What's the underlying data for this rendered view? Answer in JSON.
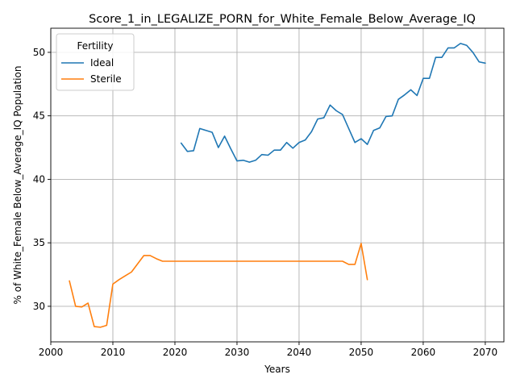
{
  "chart_data": {
    "type": "line",
    "title": "Score_1_in_LEGALIZE_PORN_for_White_Female_Below_Average_IQ",
    "xlabel": "Years",
    "ylabel": "% of White_Female Below_Average_IQ Population",
    "xlim": [
      2000,
      2073
    ],
    "ylim": [
      27.2,
      51.9
    ],
    "xticks": [
      2000,
      2010,
      2020,
      2030,
      2040,
      2050,
      2060,
      2070
    ],
    "yticks": [
      30,
      35,
      40,
      45,
      50
    ],
    "grid": true,
    "legend": {
      "title": "Fertility",
      "placement": "top-left"
    },
    "series": [
      {
        "name": "Ideal",
        "color": "#1f77b4",
        "x": [
          2021,
          2022,
          2023,
          2024,
          2025,
          2026,
          2027,
          2028,
          2029,
          2030,
          2031,
          2032,
          2033,
          2034,
          2035,
          2036,
          2037,
          2038,
          2039,
          2040,
          2041,
          2042,
          2043,
          2044,
          2045,
          2046,
          2047,
          2048,
          2049,
          2050,
          2051,
          2052,
          2053,
          2054,
          2055,
          2056,
          2057,
          2058,
          2059,
          2060,
          2061,
          2062,
          2063,
          2064,
          2065,
          2066,
          2067,
          2068,
          2069,
          2070
        ],
        "y": [
          42.85,
          42.2,
          42.25,
          44.0,
          43.85,
          43.7,
          42.5,
          43.4,
          42.4,
          41.45,
          41.5,
          41.35,
          41.5,
          41.95,
          41.9,
          42.3,
          42.3,
          42.9,
          42.45,
          42.9,
          43.1,
          43.75,
          44.75,
          44.85,
          45.85,
          45.4,
          45.1,
          44.0,
          42.9,
          43.2,
          42.75,
          43.85,
          44.05,
          44.95,
          45.0,
          46.3,
          46.65,
          47.05,
          46.6,
          47.95,
          47.95,
          49.6,
          49.6,
          50.35,
          50.35,
          50.7,
          50.55,
          50.0,
          49.25,
          49.15
        ]
      },
      {
        "name": "Sterile",
        "color": "#ff7f0e",
        "x": [
          2003,
          2004,
          2005,
          2006,
          2007,
          2008,
          2009,
          2010,
          2011,
          2012,
          2013,
          2014,
          2015,
          2016,
          2017,
          2018,
          2019,
          2020,
          2021,
          2022,
          2023,
          2024,
          2025,
          2026,
          2027,
          2028,
          2029,
          2030,
          2031,
          2032,
          2033,
          2034,
          2035,
          2036,
          2037,
          2038,
          2039,
          2040,
          2041,
          2042,
          2043,
          2044,
          2045,
          2046,
          2047,
          2048,
          2049,
          2050,
          2051
        ],
        "y": [
          32.0,
          30.0,
          29.95,
          30.25,
          28.4,
          28.35,
          28.5,
          31.75,
          32.1,
          32.4,
          32.7,
          33.35,
          34.0,
          34.0,
          33.75,
          33.55,
          33.55,
          33.55,
          33.55,
          33.55,
          33.55,
          33.55,
          33.55,
          33.55,
          33.55,
          33.55,
          33.55,
          33.55,
          33.55,
          33.55,
          33.55,
          33.55,
          33.55,
          33.55,
          33.55,
          33.55,
          33.55,
          33.55,
          33.55,
          33.55,
          33.55,
          33.55,
          33.55,
          33.55,
          33.55,
          33.3,
          33.3,
          34.95,
          32.1
        ]
      }
    ]
  }
}
